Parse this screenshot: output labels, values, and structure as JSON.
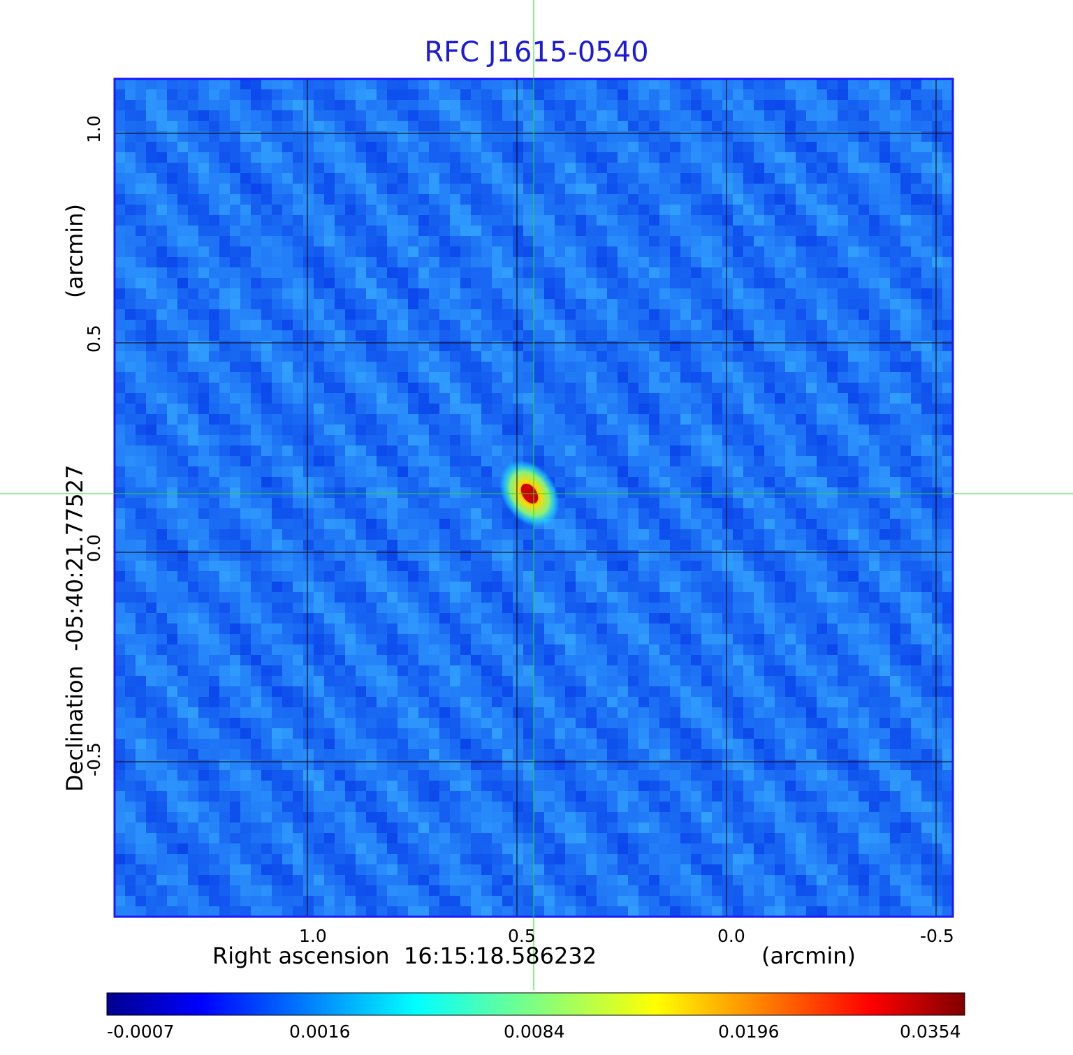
{
  "chart_data": {
    "type": "heatmap",
    "title": "RFC J1615-0540",
    "xlabel": "Right ascension  16:15:18.586232",
    "xunit": "(arcmin)",
    "ylabel": "Declination  -05:40:21.77527",
    "yunit": "(arcmin)",
    "x_ticks": [
      "1.0",
      "0.5",
      "0.0",
      "-0.5"
    ],
    "x_tick_values": [
      1.0,
      0.5,
      0.0,
      -0.5
    ],
    "y_ticks": [
      "1.0",
      "0.5",
      "0.0",
      "-0.5"
    ],
    "y_tick_values": [
      1.0,
      0.5,
      0.0,
      -0.5
    ],
    "xlim": [
      1.46,
      -0.54
    ],
    "ylim": [
      -0.87,
      1.13
    ],
    "grid": true,
    "colormap": "jet",
    "colorbar_ticks": [
      "-0.0007",
      "0.0016",
      "0.0084",
      "0.0196",
      "0.0354"
    ],
    "colorbar_range": [
      -0.0007,
      0.0354
    ],
    "peak": {
      "x": 0.47,
      "y": 0.14,
      "value": 0.0354
    },
    "crosshair": {
      "x": 0.46,
      "y": 0.14
    },
    "colors": {
      "title": "#1a1ad8",
      "frame": "#1a1aff",
      "crosshair": "#22dd22",
      "grid": "#000000"
    }
  }
}
